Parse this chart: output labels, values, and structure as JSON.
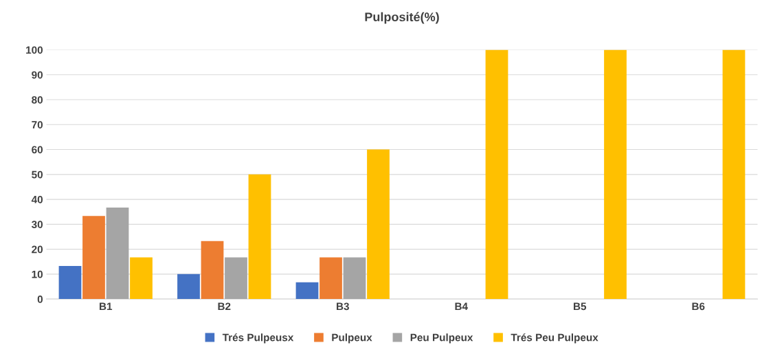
{
  "chart_data": {
    "type": "bar",
    "title": "Pulposité(%)",
    "categories": [
      "B1",
      "B2",
      "B3",
      "B4",
      "B5",
      "B6"
    ],
    "series": [
      {
        "name": "Trés Pulpeusx",
        "color": "#4472c4",
        "values": [
          13.3,
          10,
          6.7,
          0,
          0,
          0
        ]
      },
      {
        "name": "Pulpeux",
        "color": "#ed7d31",
        "values": [
          33.3,
          23.3,
          16.7,
          0,
          0,
          0
        ]
      },
      {
        "name": "Peu Pulpeux",
        "color": "#a5a5a5",
        "values": [
          36.7,
          16.7,
          16.7,
          0,
          0,
          0
        ]
      },
      {
        "name": "Trés Peu Pulpeux",
        "color": "#ffc000",
        "values": [
          16.7,
          50,
          60,
          100,
          100,
          100
        ]
      }
    ],
    "ylim": [
      0,
      100
    ],
    "yticks": [
      0,
      10,
      20,
      30,
      40,
      50,
      60,
      70,
      80,
      90,
      100
    ],
    "grid": "y",
    "legend": "bottom"
  }
}
